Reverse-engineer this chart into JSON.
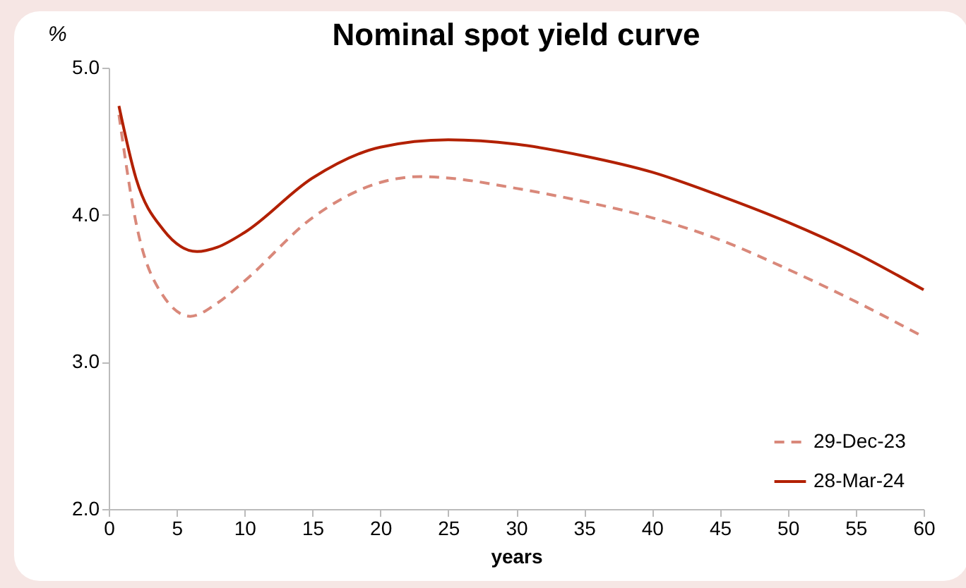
{
  "chart_data": {
    "type": "line",
    "title": "Nominal spot yield curve",
    "xlabel": "years",
    "ylabel": "%",
    "xlim": [
      0,
      60
    ],
    "xticks": [
      0,
      5,
      10,
      15,
      20,
      25,
      30,
      35,
      40,
      45,
      50,
      55,
      60
    ],
    "ylim": [
      2,
      5
    ],
    "yticks": [
      {
        "value": 2,
        "label": "2.0"
      },
      {
        "value": 3,
        "label": "3.0"
      },
      {
        "value": 4,
        "label": "4.0"
      },
      {
        "value": 5,
        "label": "5.0"
      }
    ],
    "grid": false,
    "legend": "bottom right",
    "series": [
      {
        "name": "29-Dec-23",
        "color": "#d9887a",
        "line_style": "dashed",
        "x": [
          0.75,
          2,
          4,
          6,
          8,
          10,
          15,
          20,
          23,
          25,
          30,
          35,
          40,
          45,
          50,
          55,
          60
        ],
        "values": [
          4.68,
          3.95,
          3.45,
          3.31,
          3.4,
          3.55,
          3.98,
          4.22,
          4.26,
          4.25,
          4.18,
          4.09,
          3.98,
          3.83,
          3.63,
          3.41,
          3.17
        ]
      },
      {
        "name": "28-Mar-24",
        "color": "#b22000",
        "line_style": "solid",
        "x": [
          0.75,
          2,
          4,
          6.5,
          8,
          10,
          15,
          20,
          25,
          30,
          35,
          40,
          45,
          50,
          55,
          60
        ],
        "values": [
          4.74,
          4.25,
          3.9,
          3.75,
          3.78,
          3.88,
          4.25,
          4.46,
          4.51,
          4.48,
          4.4,
          4.29,
          4.13,
          3.95,
          3.74,
          3.49
        ]
      }
    ]
  }
}
